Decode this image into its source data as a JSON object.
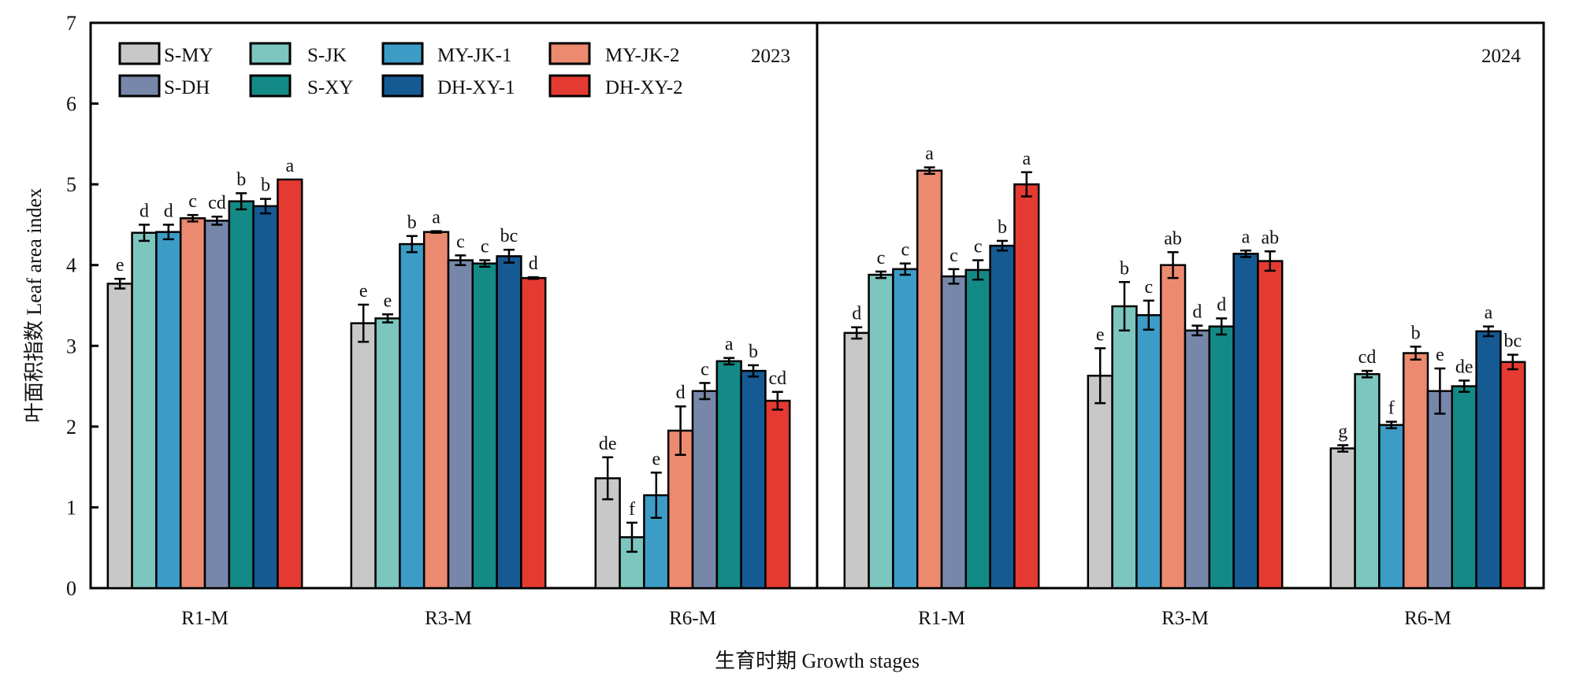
{
  "chart_data": {
    "type": "bar",
    "title": "",
    "ylabel": "叶面积指数 Leaf area index",
    "xlabel": "生育时期 Growth stages",
    "ylim": [
      0,
      7
    ],
    "yticks": [
      0,
      1,
      2,
      3,
      4,
      5,
      6,
      7
    ],
    "grid": false,
    "legend_position": "top-left",
    "panels": [
      {
        "label": "2023",
        "categories": [
          "R1-M",
          "R3-M",
          "R6-M"
        ],
        "series": [
          {
            "name": "S-MY",
            "color": "#c8c8c8",
            "values": [
              3.77,
              3.28,
              1.36
            ],
            "errors": [
              0.06,
              0.23,
              0.26
            ],
            "letters": [
              "e",
              "e",
              "de"
            ]
          },
          {
            "name": "S-JK",
            "color": "#7cc6bf",
            "values": [
              4.4,
              3.34,
              0.63
            ],
            "errors": [
              0.1,
              0.05,
              0.18
            ],
            "letters": [
              "d",
              "e",
              "f"
            ]
          },
          {
            "name": "MY-JK-1",
            "color": "#3d9cc6",
            "values": [
              4.41,
              4.26,
              1.15
            ],
            "errors": [
              0.09,
              0.1,
              0.28
            ],
            "letters": [
              "d",
              "b",
              "e"
            ]
          },
          {
            "name": "MY-JK-2",
            "color": "#ec8a70",
            "values": [
              4.58,
              4.41,
              1.95
            ],
            "errors": [
              0.04,
              0.01,
              0.3
            ],
            "letters": [
              "c",
              "a",
              "d"
            ]
          },
          {
            "name": "S-DH",
            "color": "#7787aa",
            "values": [
              4.55,
              4.06,
              2.44
            ],
            "errors": [
              0.05,
              0.06,
              0.1
            ],
            "letters": [
              "cd",
              "c",
              "c"
            ]
          },
          {
            "name": "S-XY",
            "color": "#138a85",
            "values": [
              4.79,
              4.02,
              2.81
            ],
            "errors": [
              0.1,
              0.04,
              0.04
            ],
            "letters": [
              "b",
              "c",
              "a"
            ]
          },
          {
            "name": "DH-XY-1",
            "color": "#165a94",
            "values": [
              4.73,
              4.11,
              2.69
            ],
            "errors": [
              0.09,
              0.08,
              0.07
            ],
            "letters": [
              "b",
              "bc",
              "b"
            ]
          },
          {
            "name": "DH-XY-2",
            "color": "#e53a32",
            "values": [
              5.06,
              3.84,
              2.32
            ],
            "errors": [
              0.0,
              0.01,
              0.11
            ],
            "letters": [
              "a",
              "d",
              "cd"
            ]
          }
        ]
      },
      {
        "label": "2024",
        "categories": [
          "R1-M",
          "R3-M",
          "R6-M"
        ],
        "series": [
          {
            "name": "S-MY",
            "color": "#c8c8c8",
            "values": [
              3.16,
              2.63,
              1.73
            ],
            "errors": [
              0.07,
              0.34,
              0.04
            ],
            "letters": [
              "d",
              "e",
              "g"
            ]
          },
          {
            "name": "S-JK",
            "color": "#7cc6bf",
            "values": [
              3.88,
              3.49,
              2.65
            ],
            "errors": [
              0.04,
              0.3,
              0.04
            ],
            "letters": [
              "c",
              "b",
              "cd"
            ]
          },
          {
            "name": "MY-JK-1",
            "color": "#3d9cc6",
            "values": [
              3.95,
              3.38,
              2.02
            ],
            "errors": [
              0.07,
              0.18,
              0.04
            ],
            "letters": [
              "c",
              "c",
              "f"
            ]
          },
          {
            "name": "MY-JK-2",
            "color": "#ec8a70",
            "values": [
              5.17,
              4.0,
              2.91
            ],
            "errors": [
              0.04,
              0.16,
              0.08
            ],
            "letters": [
              "a",
              "ab",
              "b"
            ]
          },
          {
            "name": "S-DH",
            "color": "#7787aa",
            "values": [
              3.86,
              3.19,
              2.44
            ],
            "errors": [
              0.09,
              0.06,
              0.28
            ],
            "letters": [
              "c",
              "d",
              "e"
            ]
          },
          {
            "name": "S-XY",
            "color": "#138a85",
            "values": [
              3.94,
              3.24,
              2.5
            ],
            "errors": [
              0.12,
              0.1,
              0.07
            ],
            "letters": [
              "c",
              "d",
              "de"
            ]
          },
          {
            "name": "DH-XY-1",
            "color": "#165a94",
            "values": [
              4.24,
              4.14,
              3.18
            ],
            "errors": [
              0.06,
              0.04,
              0.06
            ],
            "letters": [
              "b",
              "a",
              "a"
            ]
          },
          {
            "name": "DH-XY-2",
            "color": "#e53a32",
            "values": [
              5.0,
              4.05,
              2.8
            ],
            "errors": [
              0.15,
              0.12,
              0.09
            ],
            "letters": [
              "a",
              "ab",
              "bc"
            ]
          }
        ]
      }
    ],
    "legend": [
      {
        "name": "S-MY",
        "color": "#c8c8c8"
      },
      {
        "name": "S-DH",
        "color": "#7787aa"
      },
      {
        "name": "S-JK",
        "color": "#7cc6bf"
      },
      {
        "name": "S-XY",
        "color": "#138a85"
      },
      {
        "name": "MY-JK-1",
        "color": "#3d9cc6"
      },
      {
        "name": "DH-XY-1",
        "color": "#165a94"
      },
      {
        "name": "MY-JK-2",
        "color": "#ec8a70"
      },
      {
        "name": "DH-XY-2",
        "color": "#e53a32"
      }
    ]
  }
}
